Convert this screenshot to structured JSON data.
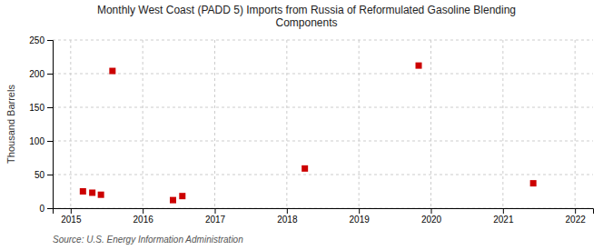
{
  "chart_data": {
    "type": "scatter",
    "title": "Monthly West Coast (PADD 5) Imports from Russia of Reformulated Gasoline Blending\nComponents",
    "ylabel": "Thousand Barrels",
    "source": "Source: U.S. Energy Information Administration",
    "x": [
      2015.17,
      2015.3,
      2015.42,
      2015.58,
      2016.42,
      2016.55,
      2018.25,
      2019.83,
      2021.42
    ],
    "values": [
      25,
      23,
      20,
      204,
      12,
      18,
      59,
      212,
      37
    ],
    "color": "#cc0000",
    "marker": "square",
    "xlim": [
      2014.75,
      2022.25
    ],
    "xticks": [
      2015,
      2016,
      2017,
      2018,
      2019,
      2020,
      2021,
      2022
    ],
    "ylim": [
      0,
      250
    ],
    "yticks": [
      0,
      50,
      100,
      150,
      200,
      250
    ],
    "grid": true
  }
}
